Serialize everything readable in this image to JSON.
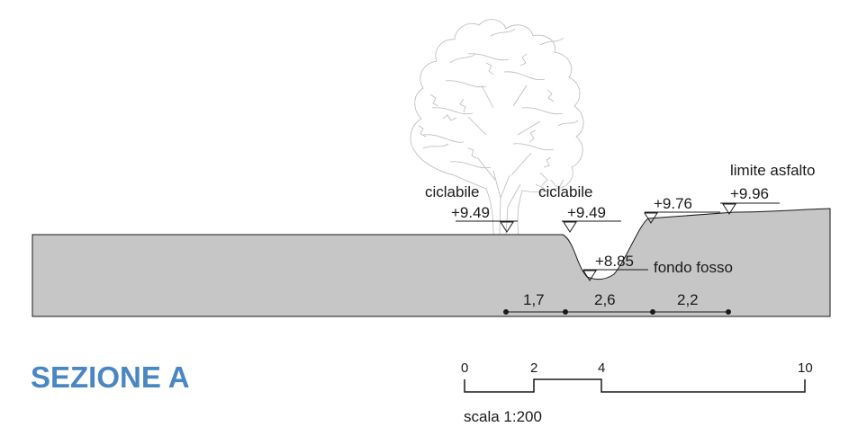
{
  "title": "SEZIONE A",
  "labels": {
    "ciclabile_left": "ciclabile",
    "ciclabile_right": "ciclabile",
    "limite_asfalto": "limite asfalto",
    "fondo_fosso": "fondo fosso"
  },
  "elevations": {
    "ciclabile_left": "+9.49",
    "ciclabile_right": "+9.49",
    "fondo_fosso": "+8.85",
    "bank": "+9.76",
    "limite_asfalto": "+9.96"
  },
  "dimensions": [
    "1,7",
    "2,6",
    "2,2"
  ],
  "scale": {
    "label": "scala 1:200",
    "ticks": [
      "0",
      "2",
      "4",
      "10"
    ]
  },
  "colors": {
    "ground": "#c6c6c6",
    "title": "#4a86c2",
    "tree": "#b9b9b9"
  }
}
